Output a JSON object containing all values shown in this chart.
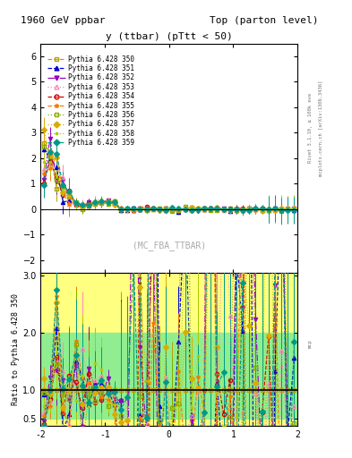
{
  "title_left": "1960 GeV ppbar",
  "title_right": "Top (parton level)",
  "plot_title": "y (ttbar) (pTtt < 50)",
  "watermark": "(MC_FBA_TTBAR)",
  "ylabel_ratio": "Ratio to Pythia 6.428 350",
  "right_label_top": "Rivet 3.1.10, ≥ 100k eve",
  "right_label_bot": "mcplots.cern.ch [arXiv:1306.3436]",
  "xlim": [
    -2.0,
    2.0
  ],
  "ylim_main": [
    -2.5,
    6.5
  ],
  "ylim_ratio": [
    0.37,
    3.05
  ],
  "ratio_yticks": [
    0.5,
    1.0,
    2.0,
    3.0
  ],
  "main_yticks": [
    -2,
    -1,
    0,
    1,
    2,
    3,
    4,
    5,
    6
  ],
  "series": [
    {
      "label": "Pythia 6.428 350",
      "color": "#b8a000",
      "linestyle": "--",
      "marker": "s",
      "markerfill": "none"
    },
    {
      "label": "Pythia 6.428 351",
      "color": "#0000cc",
      "linestyle": "--",
      "marker": "^",
      "markerfill": "full"
    },
    {
      "label": "Pythia 6.428 352",
      "color": "#9900bb",
      "linestyle": "-.",
      "marker": "v",
      "markerfill": "full"
    },
    {
      "label": "Pythia 6.428 353",
      "color": "#ff88bb",
      "linestyle": ":",
      "marker": "^",
      "markerfill": "none"
    },
    {
      "label": "Pythia 6.428 354",
      "color": "#cc0000",
      "linestyle": "--",
      "marker": "o",
      "markerfill": "none"
    },
    {
      "label": "Pythia 6.428 355",
      "color": "#ff7700",
      "linestyle": "--",
      "marker": "*",
      "markerfill": "full"
    },
    {
      "label": "Pythia 6.428 356",
      "color": "#88aa00",
      "linestyle": ":",
      "marker": "s",
      "markerfill": "none"
    },
    {
      "label": "Pythia 6.428 357",
      "color": "#ddaa00",
      "linestyle": ":",
      "marker": "D",
      "markerfill": "full"
    },
    {
      "label": "Pythia 6.428 358",
      "color": "#aacc00",
      "linestyle": ":",
      "marker": ".",
      "markerfill": "full"
    },
    {
      "label": "Pythia 6.428 359",
      "color": "#009988",
      "linestyle": "--",
      "marker": "D",
      "markerfill": "full"
    }
  ],
  "band_green": "#90ee90",
  "band_yellow": "#ffff80",
  "background_color": "#ffffff",
  "xbins": [
    -2.0,
    -1.9,
    -1.8,
    -1.7,
    -1.6,
    -1.5,
    -1.4,
    -1.3,
    -1.2,
    -1.1,
    -1.0,
    -0.9,
    -0.8,
    -0.7,
    -0.6,
    -0.5,
    -0.4,
    -0.3,
    -0.2,
    -0.1,
    0.0,
    0.1,
    0.2,
    0.3,
    0.4,
    0.5,
    0.6,
    0.7,
    0.8,
    0.9,
    1.0,
    1.1,
    1.2,
    1.3,
    1.4,
    1.5,
    1.6,
    1.7,
    1.8,
    1.9,
    2.0
  ]
}
